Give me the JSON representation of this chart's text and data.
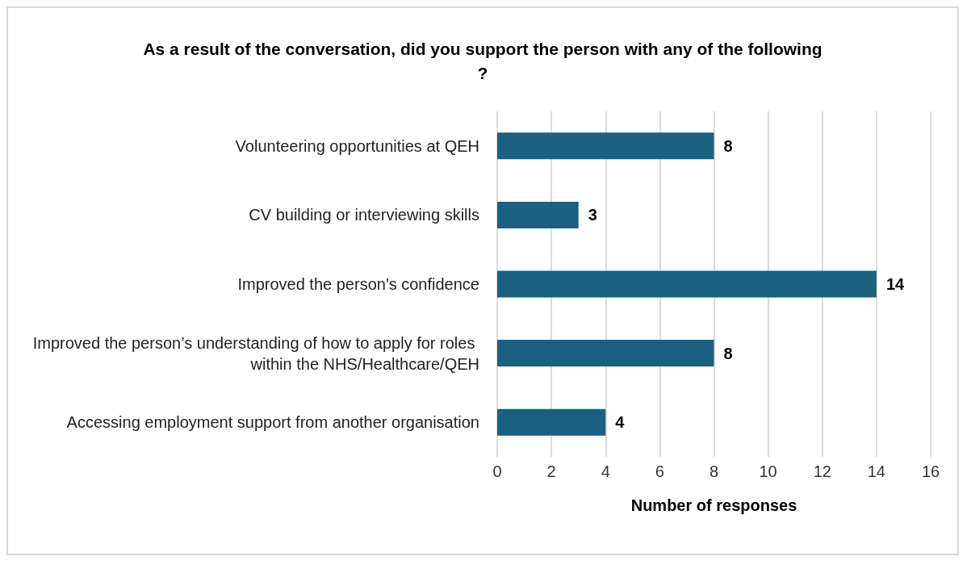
{
  "chart_data": {
    "type": "bar",
    "orientation": "horizontal",
    "title": "As a result of the conversation, did you support the person with any of the following?",
    "categories": [
      "Volunteering opportunities at QEH",
      "CV building or interviewing skills",
      "Improved the person's confidence",
      "Improved the person’s understanding of how to apply for roles within the NHS/Healthcare/QEH",
      "Accessing employment support from another organisation"
    ],
    "values": [
      8,
      3,
      14,
      8,
      4
    ],
    "color": "#1a6080",
    "xlabel": "Number of responses",
    "xlim": [
      0,
      16
    ],
    "xticks": [
      0,
      2,
      4,
      6,
      8,
      10,
      12,
      14,
      16
    ],
    "grid": "x",
    "data_labels": true
  }
}
